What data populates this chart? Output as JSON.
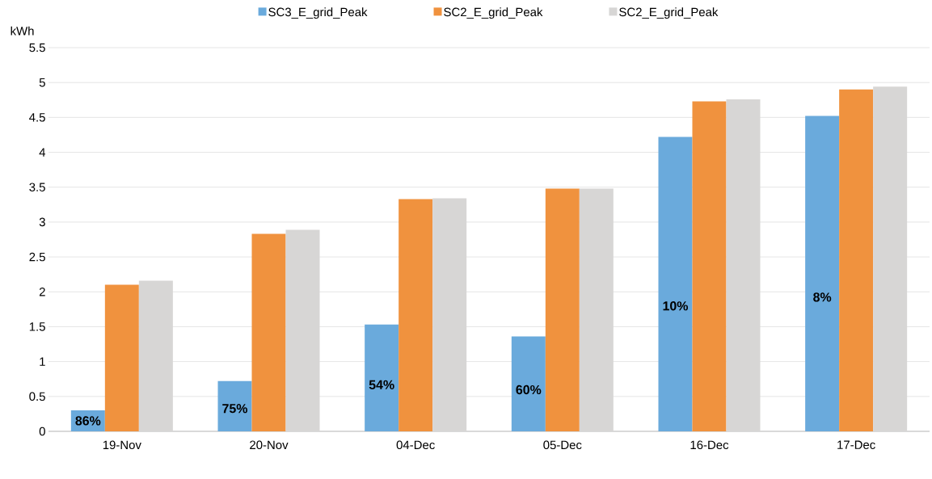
{
  "chart_data": {
    "type": "bar",
    "ylabel": "kWh",
    "categories": [
      "19-Nov",
      "20-Nov",
      "04-Dec",
      "05-Dec",
      "16-Dec",
      "17-Dec"
    ],
    "series": [
      {
        "name": "SC3_E_grid_Peak",
        "color": "#6aaadc",
        "values": [
          0.3,
          0.72,
          1.53,
          1.36,
          4.22,
          4.52
        ]
      },
      {
        "name": "SC2_E_grid_Peak",
        "color": "#f0923e",
        "values": [
          2.1,
          2.83,
          3.33,
          3.48,
          4.73,
          4.9
        ]
      },
      {
        "name": "SC2_E_grid_Peak",
        "color": "#d7d6d5",
        "values": [
          2.16,
          2.89,
          3.34,
          3.48,
          4.76,
          4.94
        ]
      }
    ],
    "ylim": [
      0,
      5.5
    ],
    "yticks": [
      0,
      0.5,
      1,
      1.5,
      2,
      2.5,
      3,
      3.5,
      4,
      4.5,
      5,
      5.5
    ],
    "annotations": [
      "86%",
      "75%",
      "54%",
      "60%",
      "10%",
      "8%"
    ],
    "grid": "y",
    "legend": "top"
  }
}
